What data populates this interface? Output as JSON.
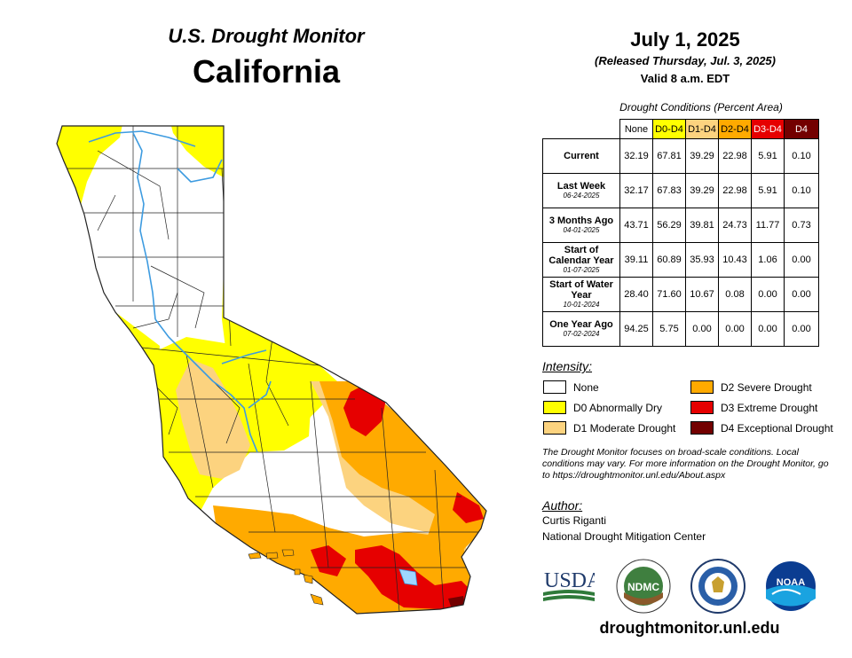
{
  "header": {
    "title": "U.S. Drought Monitor",
    "region": "California",
    "date": "July 1, 2025",
    "released": "(Released Thursday, Jul. 3, 2025)",
    "valid": "Valid 8 a.m. EDT"
  },
  "table": {
    "title": "Drought Conditions (Percent Area)",
    "columns": [
      {
        "label": "None",
        "color": "#ffffff"
      },
      {
        "label": "D0-D4",
        "color": "#ffff00"
      },
      {
        "label": "D1-D4",
        "color": "#fcd37f"
      },
      {
        "label": "D2-D4",
        "color": "#ffaa00"
      },
      {
        "label": "D3-D4",
        "color": "#e60000"
      },
      {
        "label": "D4",
        "color": "#730000"
      }
    ],
    "rows": [
      {
        "label": "Current",
        "date": "",
        "values": [
          "32.19",
          "67.81",
          "39.29",
          "22.98",
          "5.91",
          "0.10"
        ]
      },
      {
        "label": "Last Week",
        "date": "06-24-2025",
        "values": [
          "32.17",
          "67.83",
          "39.29",
          "22.98",
          "5.91",
          "0.10"
        ]
      },
      {
        "label": "3 Months Ago",
        "date": "04-01-2025",
        "values": [
          "43.71",
          "56.29",
          "39.81",
          "24.73",
          "11.77",
          "0.73"
        ]
      },
      {
        "label": "Start of Calendar Year",
        "date": "01-07-2025",
        "values": [
          "39.11",
          "60.89",
          "35.93",
          "10.43",
          "1.06",
          "0.00"
        ]
      },
      {
        "label": "Start of Water Year",
        "date": "10-01-2024",
        "values": [
          "28.40",
          "71.60",
          "10.67",
          "0.08",
          "0.00",
          "0.00"
        ]
      },
      {
        "label": "One Year Ago",
        "date": "07-02-2024",
        "values": [
          "94.25",
          "5.75",
          "0.00",
          "0.00",
          "0.00",
          "0.00"
        ]
      }
    ]
  },
  "legend": {
    "title": "Intensity:",
    "items": [
      {
        "label": "None",
        "color": "#ffffff"
      },
      {
        "label": "D0 Abnormally Dry",
        "color": "#ffff00"
      },
      {
        "label": "D1 Moderate Drought",
        "color": "#fcd37f"
      },
      {
        "label": "D2 Severe Drought",
        "color": "#ffaa00"
      },
      {
        "label": "D3 Extreme Drought",
        "color": "#e60000"
      },
      {
        "label": "D4 Exceptional Drought",
        "color": "#730000"
      }
    ]
  },
  "note": "The Drought Monitor focuses on broad-scale conditions. Local conditions may vary. For more information on the Drought Monitor, go to https://droughtmonitor.unl.edu/About.aspx",
  "author": {
    "heading": "Author:",
    "name": "Curtis Riganti",
    "org": "National Drought Mitigation Center"
  },
  "logos": {
    "usda": "USDA",
    "ndmc": "NDMC",
    "noaa": "NOAA"
  },
  "website": "droughtmonitor.unl.edu"
}
